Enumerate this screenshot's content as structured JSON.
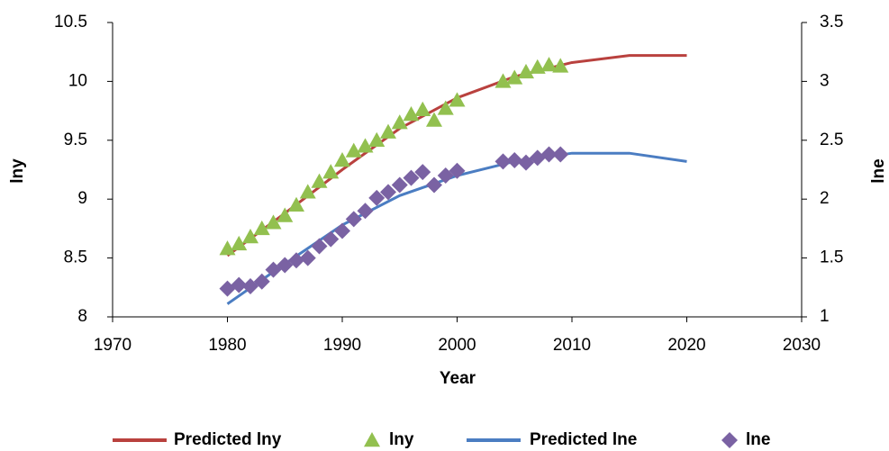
{
  "chart_data": {
    "type": "line",
    "x_label": "Year",
    "y_label": "lny",
    "y2_label": "lne",
    "xlim": [
      1970,
      2030
    ],
    "xticks": [
      1970,
      1980,
      1990,
      2000,
      2010,
      2020,
      2030
    ],
    "ylim": [
      8,
      10.5
    ],
    "yticks": [
      8,
      8.5,
      9,
      9.5,
      10,
      10.5
    ],
    "y2lim": [
      1,
      3.5
    ],
    "y2ticks": [
      1,
      1.5,
      2,
      2.5,
      3,
      3.5
    ],
    "grid": false,
    "legend": "bottom",
    "series": [
      {
        "name": "Predicted lny",
        "color": "#b9413e",
        "style": "line",
        "x": [
          1980,
          1985,
          1990,
          1995,
          2000,
          2005,
          2010,
          2015,
          2020
        ],
        "values": [
          8.52,
          8.88,
          9.25,
          9.6,
          9.86,
          10.04,
          10.16,
          10.22,
          10.22
        ]
      },
      {
        "name": "lny",
        "color": "#92c04f",
        "style": "triangle",
        "x": [
          1980,
          1981,
          1982,
          1983,
          1984,
          1985,
          1986,
          1987,
          1988,
          1989,
          1990,
          1991,
          1992,
          1993,
          1994,
          1995,
          1996,
          1997,
          1998,
          1999,
          2000,
          2004,
          2005,
          2006,
          2007,
          2008,
          2009
        ],
        "values": [
          8.58,
          8.62,
          8.68,
          8.75,
          8.8,
          8.86,
          8.95,
          9.06,
          9.15,
          9.23,
          9.33,
          9.41,
          9.45,
          9.5,
          9.57,
          9.65,
          9.72,
          9.76,
          9.67,
          9.77,
          9.84,
          10.0,
          10.03,
          10.08,
          10.12,
          10.14,
          10.13
        ]
      },
      {
        "name": "Predicted lne",
        "color": "#4b7dc2",
        "style": "line",
        "axis": "y2",
        "x": [
          1980,
          1985,
          1990,
          1995,
          2000,
          2005,
          2010,
          2015,
          2020
        ],
        "values": [
          1.11,
          1.45,
          1.78,
          2.03,
          2.2,
          2.32,
          2.39,
          2.39,
          2.32
        ]
      },
      {
        "name": "lne",
        "color": "#7a62a3",
        "style": "diamond",
        "axis": "y2",
        "x": [
          1980,
          1981,
          1982,
          1983,
          1984,
          1985,
          1986,
          1987,
          1988,
          1989,
          1990,
          1991,
          1992,
          1993,
          1994,
          1995,
          1996,
          1997,
          1998,
          1999,
          2000,
          2004,
          2005,
          2006,
          2007,
          2008,
          2009
        ],
        "values": [
          1.24,
          1.27,
          1.26,
          1.3,
          1.4,
          1.44,
          1.48,
          1.5,
          1.6,
          1.66,
          1.73,
          1.83,
          1.9,
          2.01,
          2.06,
          2.12,
          2.18,
          2.23,
          2.12,
          2.2,
          2.24,
          2.32,
          2.33,
          2.31,
          2.35,
          2.38,
          2.38
        ]
      }
    ]
  }
}
